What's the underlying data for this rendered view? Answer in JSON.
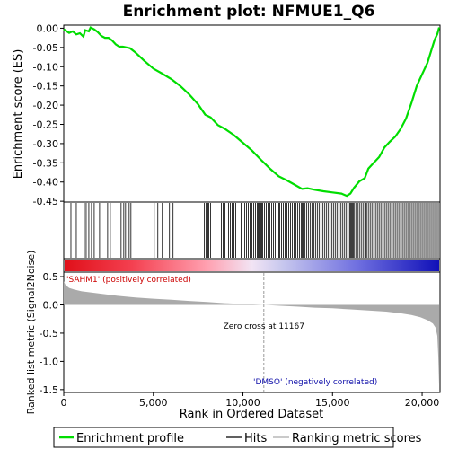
{
  "chart_data": {
    "type": "line",
    "title": "Enrichment plot: NFMUE1_Q6",
    "xlabel": "Rank in Ordered Dataset",
    "ylabel_top": "Enrichment score (ES)",
    "ylabel_bottom": "Ranked list metric (Signal2Noise)",
    "x_range": [
      0,
      21000
    ],
    "x_ticks": [
      0,
      5000,
      10000,
      15000,
      20000
    ],
    "x_tick_labels": [
      "0",
      "5,000",
      "10,000",
      "15,000",
      "20,000"
    ],
    "es_ylim": [
      -0.45,
      0.0
    ],
    "es_ticks": [
      0.0,
      -0.05,
      -0.1,
      -0.15,
      -0.2,
      -0.25,
      -0.3,
      -0.35,
      -0.4,
      -0.45
    ],
    "es_tick_labels": [
      "0.00",
      "-0.05",
      "-0.10",
      "-0.15",
      "-0.20",
      "-0.25",
      "-0.30",
      "-0.35",
      "-0.40",
      "-0.45"
    ],
    "metric_ylim": [
      -1.5,
      0.5
    ],
    "metric_ticks": [
      0.5,
      0.0,
      -0.5,
      -1.0,
      -1.5
    ],
    "metric_tick_labels": [
      "0.5",
      "0.0",
      "-0.5",
      "-1.0",
      "-1.5"
    ],
    "enrichment_profile": {
      "name": "Enrichment profile",
      "x": [
        0,
        300,
        500,
        700,
        900,
        1100,
        1200,
        1400,
        1500,
        1700,
        1900,
        2100,
        2300,
        2500,
        2700,
        2900,
        3100,
        3300,
        3500,
        3700,
        4000,
        4500,
        5000,
        5500,
        6000,
        6500,
        7000,
        7500,
        7900,
        8200,
        8600,
        9000,
        9500,
        10000,
        10500,
        11000,
        11500,
        12000,
        12500,
        13000,
        13300,
        13600,
        14000,
        14500,
        15000,
        15500,
        15800,
        16000,
        16200,
        16500,
        16800,
        17000,
        17300,
        17600,
        17900,
        18200,
        18500,
        18800,
        19100,
        19400,
        19700,
        20000,
        20300,
        20500,
        20700,
        20850,
        20950
      ],
      "y": [
        -0.003,
        -0.012,
        -0.008,
        -0.016,
        -0.013,
        -0.022,
        -0.005,
        -0.008,
        0.002,
        -0.003,
        -0.01,
        -0.02,
        -0.025,
        -0.025,
        -0.032,
        -0.042,
        -0.048,
        -0.048,
        -0.05,
        -0.052,
        -0.063,
        -0.085,
        -0.105,
        -0.118,
        -0.132,
        -0.15,
        -0.172,
        -0.198,
        -0.225,
        -0.232,
        -0.252,
        -0.262,
        -0.278,
        -0.298,
        -0.318,
        -0.342,
        -0.365,
        -0.385,
        -0.397,
        -0.41,
        -0.418,
        -0.416,
        -0.42,
        -0.424,
        -0.427,
        -0.43,
        -0.436,
        -0.43,
        -0.415,
        -0.398,
        -0.39,
        -0.365,
        -0.35,
        -0.335,
        -0.31,
        -0.295,
        -0.282,
        -0.262,
        -0.235,
        -0.195,
        -0.15,
        -0.12,
        -0.09,
        -0.06,
        -0.03,
        -0.015,
        0.002
      ],
      "color": "#00dd00"
    },
    "hits": {
      "name": "Hits",
      "positions": [
        400,
        700,
        1150,
        1250,
        1400,
        1550,
        1700,
        2000,
        2450,
        2600,
        3200,
        3350,
        3450,
        3650,
        3750,
        5050,
        5250,
        5500,
        5900,
        6100,
        7850,
        7950,
        8000,
        8050,
        8100,
        8200,
        8800,
        8900,
        9000,
        9200,
        9300,
        9400,
        9500,
        9600,
        9900,
        10100,
        10200,
        10300,
        10400,
        10500,
        10600,
        10700,
        10800,
        10850,
        10900,
        10950,
        11000,
        11050,
        11100,
        11200,
        11300,
        11400,
        11500,
        11600,
        11700,
        11800,
        11900,
        12000,
        12050,
        12150,
        12250,
        12350,
        12450,
        12550,
        12650,
        12750,
        12850,
        12950,
        13050,
        13150,
        13250,
        13300,
        13350,
        13400,
        13450,
        13550,
        13650,
        13750,
        13850,
        13950,
        14050,
        14150,
        14250,
        14350,
        14450,
        14550,
        14650,
        14750,
        14850,
        14950,
        15050,
        15150,
        15250,
        15350,
        15450,
        15550,
        15650,
        15750,
        15850,
        15950,
        16000,
        16050,
        16100,
        16150,
        16200,
        16300,
        16400,
        16500,
        16600,
        16700,
        16800,
        16850,
        16900,
        17000,
        17100,
        17200,
        17300,
        17400,
        17500,
        17600,
        17700,
        17800,
        17900,
        18000,
        18100,
        18200,
        18300,
        18400,
        18500,
        18600,
        18700,
        18800,
        18900,
        19000,
        19100,
        19200,
        19300,
        19400,
        19500,
        19600,
        19700,
        19800,
        19900,
        20000,
        20100,
        20200,
        20300,
        20400,
        20500,
        20600,
        20700,
        20800,
        20900
      ]
    },
    "ranking_metric": {
      "name": "Ranking metric scores",
      "x": [
        0,
        100,
        300,
        600,
        1000,
        2000,
        3000,
        4000,
        5000,
        6000,
        7000,
        8000,
        9000,
        10000,
        11167,
        12000,
        13000,
        14000,
        15000,
        16000,
        17000,
        18000,
        18800,
        19400,
        19900,
        20300,
        20600,
        20750,
        20850,
        20900,
        20950
      ],
      "y": [
        0.42,
        0.35,
        0.3,
        0.27,
        0.24,
        0.2,
        0.16,
        0.13,
        0.11,
        0.09,
        0.07,
        0.05,
        0.03,
        0.015,
        0.0,
        -0.015,
        -0.03,
        -0.05,
        -0.06,
        -0.08,
        -0.1,
        -0.12,
        -0.15,
        -0.18,
        -0.22,
        -0.27,
        -0.33,
        -0.4,
        -0.55,
        -0.9,
        -1.42
      ],
      "color": "#aaaaaa"
    },
    "zero_cross_label": "Zero cross at 11167",
    "zero_cross_x": 11167,
    "pos_label": "'SAHM1' (positively correlated)",
    "neg_label": "'DMSO' (negatively correlated)",
    "pos_color": "#dd0000",
    "neg_color": "#0000cc",
    "legend": [
      "Enrichment profile",
      "Hits",
      "Ranking metric scores"
    ]
  }
}
